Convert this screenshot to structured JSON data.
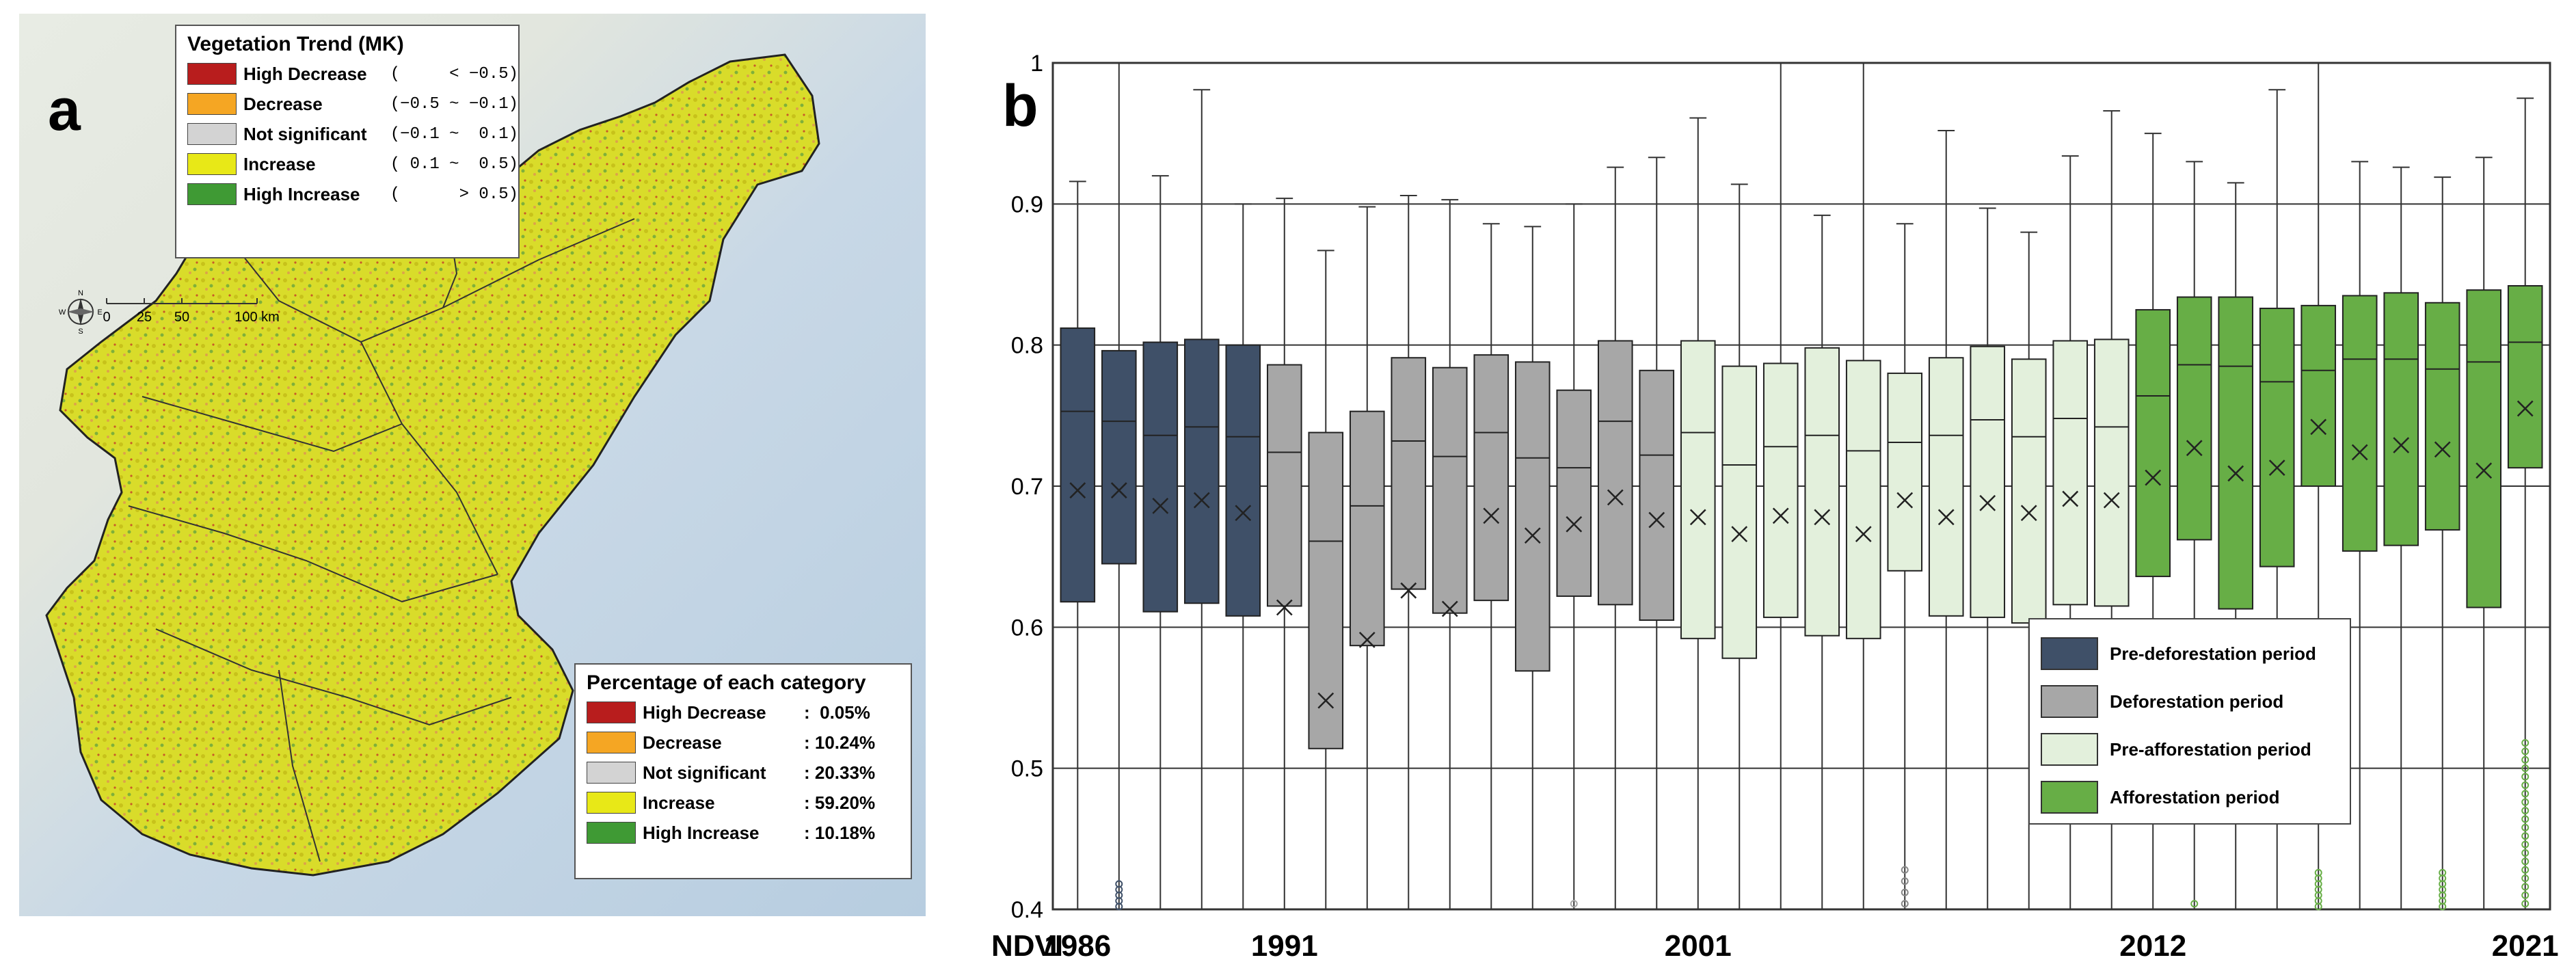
{
  "panel_a": {
    "label": "a",
    "trend_legend": {
      "title": "Vegetation Trend (MK)",
      "items": [
        {
          "label": "High Decrease",
          "range": "(     < −0.5)",
          "color": "#b81d1d"
        },
        {
          "label": "Decrease",
          "range": "(−0.5 ~ −0.1)",
          "color": "#f5a623"
        },
        {
          "label": "Not significant",
          "range": "(−0.1 ~  0.1)",
          "color": "#d3d3d3"
        },
        {
          "label": "Increase",
          "range": "( 0.1 ~  0.5)",
          "color": "#e8e817"
        },
        {
          "label": "High Increase",
          "range": "(      > 0.5)",
          "color": "#3f9a34"
        }
      ]
    },
    "percentage_legend": {
      "title": "Percentage of each category",
      "items": [
        {
          "label": "High Decrease",
          "value": ":  0.05%",
          "color": "#b81d1d"
        },
        {
          "label": "Decrease",
          "value": ": 10.24%",
          "color": "#f5a623"
        },
        {
          "label": "Not significant",
          "value": ": 20.33%",
          "color": "#d3d3d3"
        },
        {
          "label": "Increase",
          "value": ": 59.20%",
          "color": "#e8e817"
        },
        {
          "label": "High Increase",
          "value": ": 10.18%",
          "color": "#3f9a34"
        }
      ]
    },
    "scale_bar": {
      "ticks": [
        "0",
        "25",
        "50",
        "100 km"
      ],
      "compass_letters": [
        "N",
        "E",
        "S",
        "W"
      ]
    }
  },
  "panel_b": {
    "label": "b",
    "legend": [
      {
        "label": "Pre-deforestation period",
        "color": "#3f5068"
      },
      {
        "label": "Deforestation period",
        "color": "#a7a7a7"
      },
      {
        "label": "Pre-afforestation period",
        "color": "#e3f0dc"
      },
      {
        "label": "Afforestation period",
        "color": "#67ae46"
      }
    ]
  },
  "chart_data": {
    "type": "box",
    "xlabel": "NDVI",
    "ylim": [
      0.4,
      1.0
    ],
    "yticks": [
      0.4,
      0.5,
      0.6,
      0.7,
      0.8,
      0.9,
      1
    ],
    "ytick_labels": [
      "0.4",
      "0.5",
      "0.6",
      "0.7",
      "0.8",
      "0.9",
      "1"
    ],
    "xtick_labels": [
      {
        "label": "1986",
        "index": 0
      },
      {
        "label": "1991",
        "index": 5
      },
      {
        "label": "2001",
        "index": 15
      },
      {
        "label": "2012",
        "index": 26
      },
      {
        "label": "2021",
        "index": 35
      }
    ],
    "grid": true,
    "legend_position": "bottom-right",
    "boxes": [
      {
        "period": 0,
        "q1": 0.618,
        "median": 0.753,
        "q3": 0.812,
        "mean": 0.697,
        "whisker_low": 0.4,
        "whisker_high": 0.916
      },
      {
        "period": 0,
        "q1": 0.645,
        "median": 0.746,
        "q3": 0.796,
        "mean": 0.697,
        "whisker_low": 0.4,
        "whisker_high": 1.0,
        "outliers": [
          0.402,
          0.406,
          0.41,
          0.414,
          0.418
        ]
      },
      {
        "period": 0,
        "q1": 0.611,
        "median": 0.736,
        "q3": 0.802,
        "mean": 0.686,
        "whisker_low": 0.4,
        "whisker_high": 0.92
      },
      {
        "period": 0,
        "q1": 0.617,
        "median": 0.742,
        "q3": 0.804,
        "mean": 0.69,
        "whisker_low": 0.4,
        "whisker_high": 0.981
      },
      {
        "period": 0,
        "q1": 0.608,
        "median": 0.735,
        "q3": 0.8,
        "mean": 0.681,
        "whisker_low": 0.4,
        "whisker_high": 0.9
      },
      {
        "period": 1,
        "q1": 0.615,
        "median": 0.724,
        "q3": 0.786,
        "mean": 0.614,
        "whisker_low": 0.4,
        "whisker_high": 0.904
      },
      {
        "period": 1,
        "q1": 0.514,
        "median": 0.661,
        "q3": 0.738,
        "mean": 0.548,
        "whisker_low": 0.4,
        "whisker_high": 0.867
      },
      {
        "period": 1,
        "q1": 0.587,
        "median": 0.686,
        "q3": 0.753,
        "mean": 0.591,
        "whisker_low": 0.4,
        "whisker_high": 0.898
      },
      {
        "period": 1,
        "q1": 0.627,
        "median": 0.732,
        "q3": 0.791,
        "mean": 0.626,
        "whisker_low": 0.4,
        "whisker_high": 0.906
      },
      {
        "period": 1,
        "q1": 0.61,
        "median": 0.721,
        "q3": 0.784,
        "mean": 0.613,
        "whisker_low": 0.4,
        "whisker_high": 0.903
      },
      {
        "period": 1,
        "q1": 0.619,
        "median": 0.738,
        "q3": 0.793,
        "mean": 0.679,
        "whisker_low": 0.4,
        "whisker_high": 0.886
      },
      {
        "period": 1,
        "q1": 0.569,
        "median": 0.72,
        "q3": 0.788,
        "mean": 0.665,
        "whisker_low": 0.4,
        "whisker_high": 0.884
      },
      {
        "period": 1,
        "q1": 0.622,
        "median": 0.713,
        "q3": 0.768,
        "mean": 0.673,
        "whisker_low": 0.4,
        "whisker_high": 0.9,
        "outliers": [
          0.404
        ]
      },
      {
        "period": 1,
        "q1": 0.616,
        "median": 0.746,
        "q3": 0.803,
        "mean": 0.692,
        "whisker_low": 0.4,
        "whisker_high": 0.926
      },
      {
        "period": 1,
        "q1": 0.605,
        "median": 0.722,
        "q3": 0.782,
        "mean": 0.676,
        "whisker_low": 0.4,
        "whisker_high": 0.933
      },
      {
        "period": 2,
        "q1": 0.592,
        "median": 0.738,
        "q3": 0.803,
        "mean": 0.678,
        "whisker_low": 0.4,
        "whisker_high": 0.961
      },
      {
        "period": 2,
        "q1": 0.578,
        "median": 0.715,
        "q3": 0.785,
        "mean": 0.666,
        "whisker_low": 0.4,
        "whisker_high": 0.914
      },
      {
        "period": 2,
        "q1": 0.607,
        "median": 0.728,
        "q3": 0.787,
        "mean": 0.679,
        "whisker_low": 0.4,
        "whisker_high": 1.0
      },
      {
        "period": 2,
        "q1": 0.594,
        "median": 0.736,
        "q3": 0.798,
        "mean": 0.678,
        "whisker_low": 0.4,
        "whisker_high": 0.892
      },
      {
        "period": 2,
        "q1": 0.592,
        "median": 0.725,
        "q3": 0.789,
        "mean": 0.666,
        "whisker_low": 0.4,
        "whisker_high": 1.0
      },
      {
        "period": 2,
        "q1": 0.64,
        "median": 0.731,
        "q3": 0.78,
        "mean": 0.69,
        "whisker_low": 0.4,
        "whisker_high": 0.886,
        "outliers": [
          0.404,
          0.412,
          0.42,
          0.428
        ]
      },
      {
        "period": 2,
        "q1": 0.608,
        "median": 0.736,
        "q3": 0.791,
        "mean": 0.678,
        "whisker_low": 0.4,
        "whisker_high": 0.952
      },
      {
        "period": 2,
        "q1": 0.607,
        "median": 0.747,
        "q3": 0.799,
        "mean": 0.688,
        "whisker_low": 0.4,
        "whisker_high": 0.897
      },
      {
        "period": 2,
        "q1": 0.603,
        "median": 0.735,
        "q3": 0.79,
        "mean": 0.681,
        "whisker_low": 0.4,
        "whisker_high": 0.88
      },
      {
        "period": 2,
        "q1": 0.616,
        "median": 0.748,
        "q3": 0.803,
        "mean": 0.691,
        "whisker_low": 0.4,
        "whisker_high": 0.934
      },
      {
        "period": 2,
        "q1": 0.615,
        "median": 0.742,
        "q3": 0.804,
        "mean": 0.69,
        "whisker_low": 0.4,
        "whisker_high": 0.966
      },
      {
        "period": 3,
        "q1": 0.636,
        "median": 0.764,
        "q3": 0.825,
        "mean": 0.706,
        "whisker_low": 0.4,
        "whisker_high": 0.95
      },
      {
        "period": 3,
        "q1": 0.662,
        "median": 0.786,
        "q3": 0.834,
        "mean": 0.727,
        "whisker_low": 0.4,
        "whisker_high": 0.93,
        "outliers": [
          0.404
        ]
      },
      {
        "period": 3,
        "q1": 0.613,
        "median": 0.785,
        "q3": 0.834,
        "mean": 0.709,
        "whisker_low": 0.4,
        "whisker_high": 0.915
      },
      {
        "period": 3,
        "q1": 0.643,
        "median": 0.774,
        "q3": 0.826,
        "mean": 0.713,
        "whisker_low": 0.4,
        "whisker_high": 0.981
      },
      {
        "period": 3,
        "q1": 0.7,
        "median": 0.782,
        "q3": 0.828,
        "mean": 0.742,
        "whisker_low": 0.4,
        "whisker_high": 1.0,
        "outliers": [
          0.402,
          0.406,
          0.41,
          0.414,
          0.418,
          0.422,
          0.426
        ]
      },
      {
        "period": 3,
        "q1": 0.654,
        "median": 0.79,
        "q3": 0.835,
        "mean": 0.724,
        "whisker_low": 0.4,
        "whisker_high": 0.93
      },
      {
        "period": 3,
        "q1": 0.658,
        "median": 0.79,
        "q3": 0.837,
        "mean": 0.729,
        "whisker_low": 0.4,
        "whisker_high": 0.926
      },
      {
        "period": 3,
        "q1": 0.669,
        "median": 0.783,
        "q3": 0.83,
        "mean": 0.726,
        "whisker_low": 0.4,
        "whisker_high": 0.919,
        "outliers": [
          0.402,
          0.406,
          0.41,
          0.414,
          0.418,
          0.422,
          0.426
        ]
      },
      {
        "period": 3,
        "q1": 0.614,
        "median": 0.788,
        "q3": 0.839,
        "mean": 0.711,
        "whisker_low": 0.4,
        "whisker_high": 0.933
      },
      {
        "period": 3,
        "q1": 0.713,
        "median": 0.802,
        "q3": 0.842,
        "mean": 0.755,
        "whisker_low": 0.4,
        "whisker_high": 0.975,
        "outliers": [
          0.404,
          0.41,
          0.416,
          0.422,
          0.428,
          0.434,
          0.44,
          0.446,
          0.452,
          0.458,
          0.464,
          0.47,
          0.476,
          0.482,
          0.488,
          0.494,
          0.5,
          0.506,
          0.512,
          0.518
        ]
      }
    ]
  }
}
